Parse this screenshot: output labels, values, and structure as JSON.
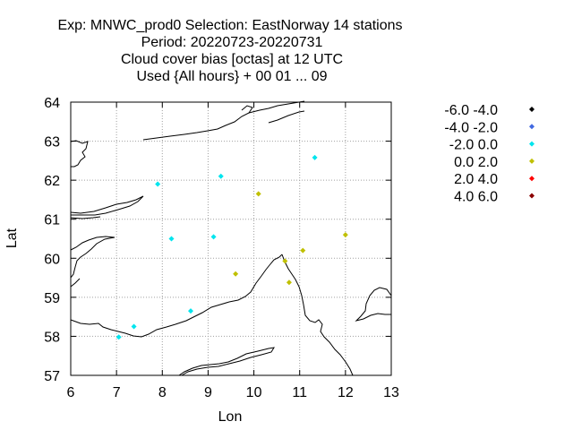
{
  "chart_data": {
    "type": "scatter",
    "title_lines": [
      "Exp: MNWC_prod0   Selection: EastNorway     14 stations",
      "Period: 20220723-20220731",
      "Cloud cover bias [octas] at  12 UTC",
      "Used {All hours} + 00 01 ... 09"
    ],
    "xlabel": "Lon",
    "ylabel": "Lat",
    "xlim": [
      6,
      13
    ],
    "ylim": [
      57,
      64
    ],
    "xticks": [
      6,
      7,
      8,
      9,
      10,
      11,
      12,
      13
    ],
    "yticks": [
      57,
      58,
      59,
      60,
      61,
      62,
      63,
      64
    ],
    "grid": true,
    "legend_position": "right",
    "legend": [
      {
        "label": "-6.0 -4.0",
        "color": "#000000"
      },
      {
        "label": "-4.0 -2.0",
        "color": "#4169e1"
      },
      {
        "label": "-2.0 0.0",
        "color": "#00e5ee"
      },
      {
        "label": "0.0 2.0",
        "color": "#c0c000"
      },
      {
        "label": "2.0 4.0",
        "color": "#ff0000"
      },
      {
        "label": "4.0 6.0",
        "color": "#8b0000"
      }
    ],
    "series": [
      {
        "name": "-2.0 0.0",
        "color": "#00e5ee",
        "points": [
          {
            "lon": 7.05,
            "lat": 57.98
          },
          {
            "lon": 7.38,
            "lat": 58.25
          },
          {
            "lon": 8.62,
            "lat": 58.65
          },
          {
            "lon": 8.2,
            "lat": 60.5
          },
          {
            "lon": 9.12,
            "lat": 60.55
          },
          {
            "lon": 7.9,
            "lat": 61.9
          },
          {
            "lon": 9.28,
            "lat": 62.1
          },
          {
            "lon": 11.33,
            "lat": 62.58
          }
        ]
      },
      {
        "name": "0.0 2.0",
        "color": "#c0c000",
        "points": [
          {
            "lon": 9.6,
            "lat": 59.6
          },
          {
            "lon": 10.1,
            "lat": 61.65
          },
          {
            "lon": 10.68,
            "lat": 59.93
          },
          {
            "lon": 10.77,
            "lat": 59.38
          },
          {
            "lon": 11.07,
            "lat": 60.2
          },
          {
            "lon": 12.0,
            "lat": 60.6
          }
        ]
      }
    ]
  }
}
